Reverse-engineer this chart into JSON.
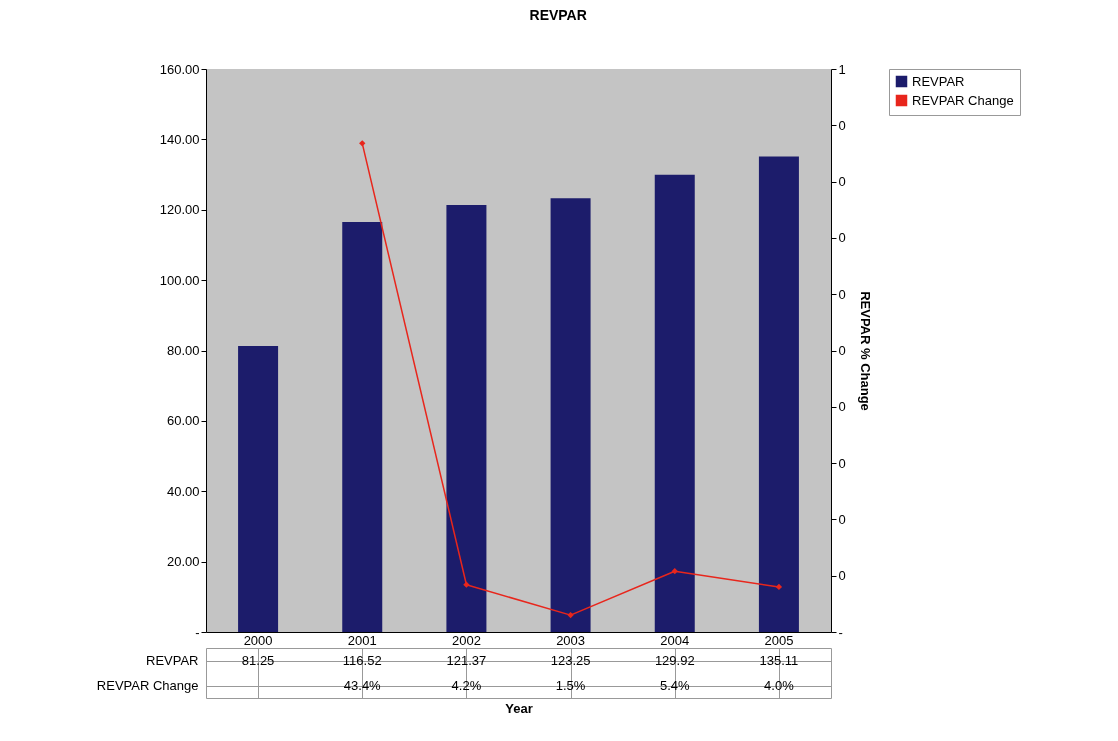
{
  "chart_data": {
    "type": "bar",
    "title": "REVPAR",
    "xlabel": "Year",
    "y2label": "REVPAR % Change",
    "categories": [
      "2000",
      "2001",
      "2002",
      "2003",
      "2004",
      "2005"
    ],
    "series": [
      {
        "name": "REVPAR",
        "color": "#1c1c6b",
        "values": [
          81.25,
          116.52,
          121.37,
          123.25,
          129.92,
          135.11
        ],
        "value_labels": [
          "81.25",
          "116.52",
          "121.37",
          "123.25",
          "129.92",
          "135.11"
        ]
      },
      {
        "name": "REVPAR Change",
        "type": "line",
        "axis": "y2",
        "color": "#e8261c",
        "marker": "diamond",
        "values": [
          null,
          0.434,
          0.042,
          0.015,
          0.054,
          0.04
        ],
        "value_labels": [
          null,
          "43.4%",
          "4.2%",
          "1.5%",
          "5.4%",
          "4.0%"
        ]
      }
    ],
    "ylim": [
      0,
      160
    ],
    "yticks": [
      {
        "value": 0,
        "label": "-"
      },
      {
        "value": 20,
        "label": "20.00"
      },
      {
        "value": 40,
        "label": "40.00"
      },
      {
        "value": 60,
        "label": "60.00"
      },
      {
        "value": 80,
        "label": "80.00"
      },
      {
        "value": 100,
        "label": "100.00"
      },
      {
        "value": 120,
        "label": "120.00"
      },
      {
        "value": 140,
        "label": "140.00"
      },
      {
        "value": 160,
        "label": "160.00"
      }
    ],
    "y2lim": [
      0,
      0.5
    ],
    "y2ticks": [
      {
        "value": 0,
        "label": "-"
      },
      {
        "value": 0.05,
        "label": "0"
      },
      {
        "value": 0.1,
        "label": "0"
      },
      {
        "value": 0.15,
        "label": "0"
      },
      {
        "value": 0.2,
        "label": "0"
      },
      {
        "value": 0.25,
        "label": "0"
      },
      {
        "value": 0.3,
        "label": "0"
      },
      {
        "value": 0.35,
        "label": "0"
      },
      {
        "value": 0.4,
        "label": "0"
      },
      {
        "value": 0.45,
        "label": "0"
      },
      {
        "value": 0.5,
        "label": "1"
      }
    ],
    "legend": "right"
  }
}
